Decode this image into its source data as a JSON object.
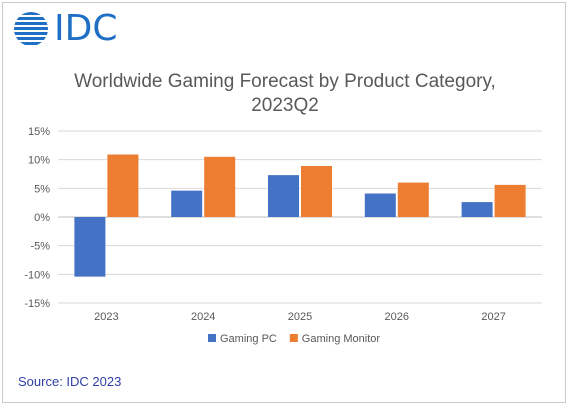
{
  "logo": {
    "text": "IDC",
    "icon": "idc-globe-icon"
  },
  "title_line1": "Worldwide Gaming Forecast by Product Category,",
  "title_line2": "2023Q2",
  "source": "Source: IDC 2023",
  "chart_data": {
    "type": "bar",
    "categories": [
      "2023",
      "2024",
      "2025",
      "2026",
      "2027"
    ],
    "series": [
      {
        "name": "Gaming PC",
        "color": "#4472c4",
        "values": [
          -10.4,
          4.6,
          7.3,
          4.1,
          2.6
        ]
      },
      {
        "name": "Gaming Monitor",
        "color": "#ed7d31",
        "values": [
          10.9,
          10.5,
          8.9,
          6.0,
          5.6
        ]
      }
    ],
    "ylim": [
      -15,
      15
    ],
    "yticks": [
      15,
      10,
      5,
      0,
      -5,
      -10,
      -15
    ],
    "ytick_labels": [
      "15%",
      "10%",
      "5%",
      "0%",
      "-5%",
      "-10%",
      "-15%"
    ],
    "grid": true,
    "legend_position": "bottom"
  }
}
